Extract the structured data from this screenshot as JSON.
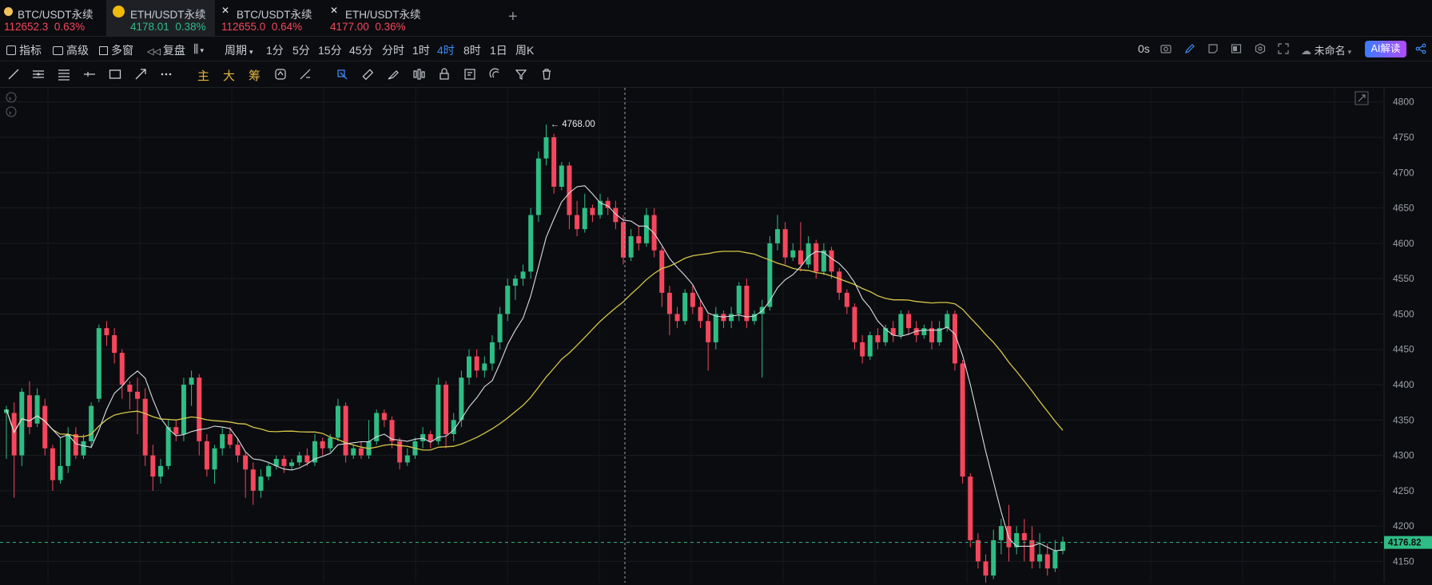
{
  "tabs": [
    {
      "name": "BTC/USDT永续",
      "price": "112652.3",
      "change": "0.63%",
      "dir": "dn",
      "active": false,
      "icon": "btc-coin-icon"
    },
    {
      "name": "ETH/USDT永续",
      "price": "4178.01",
      "change": "0.38%",
      "dir": "up",
      "active": true,
      "icon": "binance-logo-icon"
    },
    {
      "name": "BTC/USDT永续",
      "price": "112655.0",
      "change": "0.64%",
      "dir": "dn",
      "active": false,
      "icon": "exchange-x-icon"
    },
    {
      "name": "ETH/USDT永续",
      "price": "4177.00",
      "change": "0.36%",
      "dir": "dn",
      "active": false,
      "icon": "exchange-x-icon"
    }
  ],
  "toolbar": {
    "indicator": "指标",
    "advanced": "高级",
    "multi_window": "多窗",
    "reset": "复盘",
    "period": "周期",
    "intervals": [
      "1分",
      "5分",
      "15分",
      "45分",
      "分时",
      "1时",
      "4时",
      "8时",
      "1日",
      "周K"
    ],
    "selected_interval": "4时",
    "countdown": "0s",
    "layout_name": "未命名",
    "ai_label": "AI解读"
  },
  "drawing_tools": {
    "main": "主",
    "large": "大",
    "chips": "筹"
  },
  "colors": {
    "up": "#2ebd85",
    "down": "#f6465d",
    "ma_fast": "#d9dde3",
    "ma_slow": "#d6c64a",
    "accent": "#3d8bf5"
  },
  "chart_data": {
    "type": "candlestick",
    "ylim": [
      4120,
      4820
    ],
    "y_ticks": [
      4800,
      4750,
      4700,
      4650,
      4600,
      4550,
      4500,
      4450,
      4400,
      4350,
      4300,
      4250,
      4200,
      4150
    ],
    "last_price": "4176.82",
    "high_marker": "← 4768.00",
    "candles": [
      [
        4360,
        4365,
        4295,
        4370
      ],
      [
        4360,
        4300,
        4240,
        4375
      ],
      [
        4300,
        4390,
        4285,
        4395
      ],
      [
        4385,
        4340,
        4330,
        4405
      ],
      [
        4345,
        4385,
        4340,
        4395
      ],
      [
        4370,
        4310,
        4300,
        4380
      ],
      [
        4310,
        4265,
        4250,
        4315
      ],
      [
        4265,
        4285,
        4260,
        4325
      ],
      [
        4285,
        4330,
        4275,
        4340
      ],
      [
        4330,
        4300,
        4295,
        4340
      ],
      [
        4300,
        4320,
        4295,
        4330
      ],
      [
        4320,
        4370,
        4310,
        4375
      ],
      [
        4380,
        4480,
        4375,
        4485
      ],
      [
        4480,
        4470,
        4455,
        4490
      ],
      [
        4470,
        4445,
        4430,
        4480
      ],
      [
        4445,
        4400,
        4380,
        4450
      ],
      [
        4400,
        4390,
        4365,
        4405
      ],
      [
        4390,
        4380,
        4330,
        4410
      ],
      [
        4380,
        4300,
        4285,
        4395
      ],
      [
        4300,
        4270,
        4250,
        4315
      ],
      [
        4270,
        4285,
        4260,
        4295
      ],
      [
        4285,
        4340,
        4280,
        4350
      ],
      [
        4340,
        4330,
        4320,
        4350
      ],
      [
        4330,
        4400,
        4320,
        4410
      ],
      [
        4400,
        4410,
        4370,
        4420
      ],
      [
        4410,
        4320,
        4300,
        4415
      ],
      [
        4320,
        4280,
        4270,
        4330
      ],
      [
        4280,
        4310,
        4260,
        4315
      ],
      [
        4310,
        4330,
        4300,
        4340
      ],
      [
        4330,
        4315,
        4310,
        4340
      ],
      [
        4315,
        4300,
        4290,
        4325
      ],
      [
        4300,
        4280,
        4240,
        4305
      ],
      [
        4280,
        4250,
        4230,
        4290
      ],
      [
        4250,
        4270,
        4240,
        4280
      ],
      [
        4270,
        4285,
        4265,
        4290
      ],
      [
        4285,
        4295,
        4280,
        4300
      ],
      [
        4295,
        4285,
        4275,
        4300
      ],
      [
        4285,
        4290,
        4280,
        4295
      ],
      [
        4290,
        4300,
        4285,
        4305
      ],
      [
        4300,
        4290,
        4285,
        4310
      ],
      [
        4290,
        4320,
        4285,
        4330
      ],
      [
        4320,
        4310,
        4300,
        4325
      ],
      [
        4310,
        4325,
        4305,
        4330
      ],
      [
        4325,
        4370,
        4320,
        4380
      ],
      [
        4370,
        4300,
        4290,
        4375
      ],
      [
        4300,
        4310,
        4295,
        4315
      ],
      [
        4310,
        4300,
        4295,
        4320
      ],
      [
        4300,
        4320,
        4295,
        4350
      ],
      [
        4320,
        4360,
        4315,
        4365
      ],
      [
        4360,
        4350,
        4340,
        4365
      ],
      [
        4350,
        4320,
        4310,
        4355
      ],
      [
        4320,
        4290,
        4280,
        4325
      ],
      [
        4290,
        4300,
        4285,
        4310
      ],
      [
        4300,
        4320,
        4295,
        4325
      ],
      [
        4320,
        4330,
        4310,
        4340
      ],
      [
        4330,
        4320,
        4310,
        4335
      ],
      [
        4320,
        4400,
        4315,
        4410
      ],
      [
        4400,
        4330,
        4310,
        4405
      ],
      [
        4330,
        4350,
        4320,
        4360
      ],
      [
        4350,
        4410,
        4340,
        4420
      ],
      [
        4410,
        4440,
        4400,
        4450
      ],
      [
        4440,
        4420,
        4410,
        4450
      ],
      [
        4420,
        4430,
        4410,
        4440
      ],
      [
        4430,
        4460,
        4420,
        4470
      ],
      [
        4460,
        4500,
        4450,
        4510
      ],
      [
        4500,
        4540,
        4490,
        4550
      ],
      [
        4540,
        4550,
        4520,
        4555
      ],
      [
        4550,
        4560,
        4540,
        4570
      ],
      [
        4560,
        4640,
        4550,
        4650
      ],
      [
        4640,
        4720,
        4630,
        4730
      ],
      [
        4720,
        4750,
        4710,
        4768
      ],
      [
        4750,
        4680,
        4670,
        4755
      ],
      [
        4680,
        4710,
        4675,
        4715
      ],
      [
        4710,
        4640,
        4620,
        4715
      ],
      [
        4640,
        4620,
        4610,
        4660
      ],
      [
        4620,
        4650,
        4615,
        4670
      ],
      [
        4650,
        4640,
        4630,
        4655
      ],
      [
        4640,
        4660,
        4635,
        4670
      ],
      [
        4660,
        4650,
        4640,
        4665
      ],
      [
        4650,
        4630,
        4620,
        4660
      ],
      [
        4630,
        4580,
        4570,
        4640
      ],
      [
        4580,
        4610,
        4575,
        4620
      ],
      [
        4610,
        4600,
        4590,
        4625
      ],
      [
        4600,
        4640,
        4595,
        4650
      ],
      [
        4640,
        4590,
        4580,
        4650
      ],
      [
        4590,
        4530,
        4510,
        4595
      ],
      [
        4530,
        4500,
        4470,
        4540
      ],
      [
        4500,
        4490,
        4480,
        4510
      ],
      [
        4490,
        4530,
        4485,
        4535
      ],
      [
        4530,
        4510,
        4500,
        4540
      ],
      [
        4510,
        4490,
        4480,
        4520
      ],
      [
        4490,
        4460,
        4420,
        4500
      ],
      [
        4460,
        4500,
        4450,
        4510
      ],
      [
        4500,
        4490,
        4480,
        4505
      ],
      [
        4490,
        4500,
        4480,
        4510
      ],
      [
        4500,
        4540,
        4490,
        4545
      ],
      [
        4540,
        4490,
        4480,
        4550
      ],
      [
        4490,
        4500,
        4485,
        4505
      ],
      [
        4500,
        4510,
        4410,
        4520
      ],
      [
        4510,
        4600,
        4505,
        4610
      ],
      [
        4600,
        4620,
        4590,
        4640
      ],
      [
        4620,
        4580,
        4570,
        4630
      ],
      [
        4580,
        4590,
        4575,
        4600
      ],
      [
        4590,
        4570,
        4560,
        4630
      ],
      [
        4570,
        4600,
        4565,
        4610
      ],
      [
        4600,
        4560,
        4550,
        4605
      ],
      [
        4560,
        4590,
        4555,
        4600
      ],
      [
        4590,
        4560,
        4550,
        4595
      ],
      [
        4560,
        4530,
        4520,
        4565
      ],
      [
        4530,
        4510,
        4500,
        4535
      ],
      [
        4510,
        4460,
        4450,
        4515
      ],
      [
        4460,
        4440,
        4430,
        4470
      ],
      [
        4440,
        4470,
        4435,
        4475
      ],
      [
        4470,
        4460,
        4450,
        4480
      ],
      [
        4460,
        4480,
        4455,
        4485
      ],
      [
        4480,
        4470,
        4460,
        4490
      ],
      [
        4470,
        4500,
        4465,
        4505
      ],
      [
        4500,
        4480,
        4470,
        4505
      ],
      [
        4480,
        4470,
        4460,
        4490
      ],
      [
        4470,
        4480,
        4465,
        4485
      ],
      [
        4480,
        4460,
        4450,
        4490
      ],
      [
        4460,
        4480,
        4455,
        4490
      ],
      [
        4480,
        4500,
        4475,
        4505
      ],
      [
        4500,
        4430,
        4420,
        4505
      ],
      [
        4430,
        4270,
        4260,
        4435
      ],
      [
        4270,
        4180,
        4170,
        4275
      ],
      [
        4180,
        4150,
        4140,
        4190
      ],
      [
        4150,
        4130,
        4120,
        4160
      ],
      [
        4130,
        4180,
        4125,
        4195
      ],
      [
        4180,
        4200,
        4160,
        4210
      ],
      [
        4200,
        4170,
        4150,
        4230
      ],
      [
        4170,
        4190,
        4160,
        4200
      ],
      [
        4190,
        4180,
        4150,
        4210
      ],
      [
        4180,
        4150,
        4140,
        4200
      ],
      [
        4150,
        4160,
        4140,
        4190
      ],
      [
        4160,
        4140,
        4130,
        4175
      ],
      [
        4140,
        4165,
        4135,
        4180
      ],
      [
        4165,
        4178,
        4160,
        4185
      ]
    ]
  }
}
